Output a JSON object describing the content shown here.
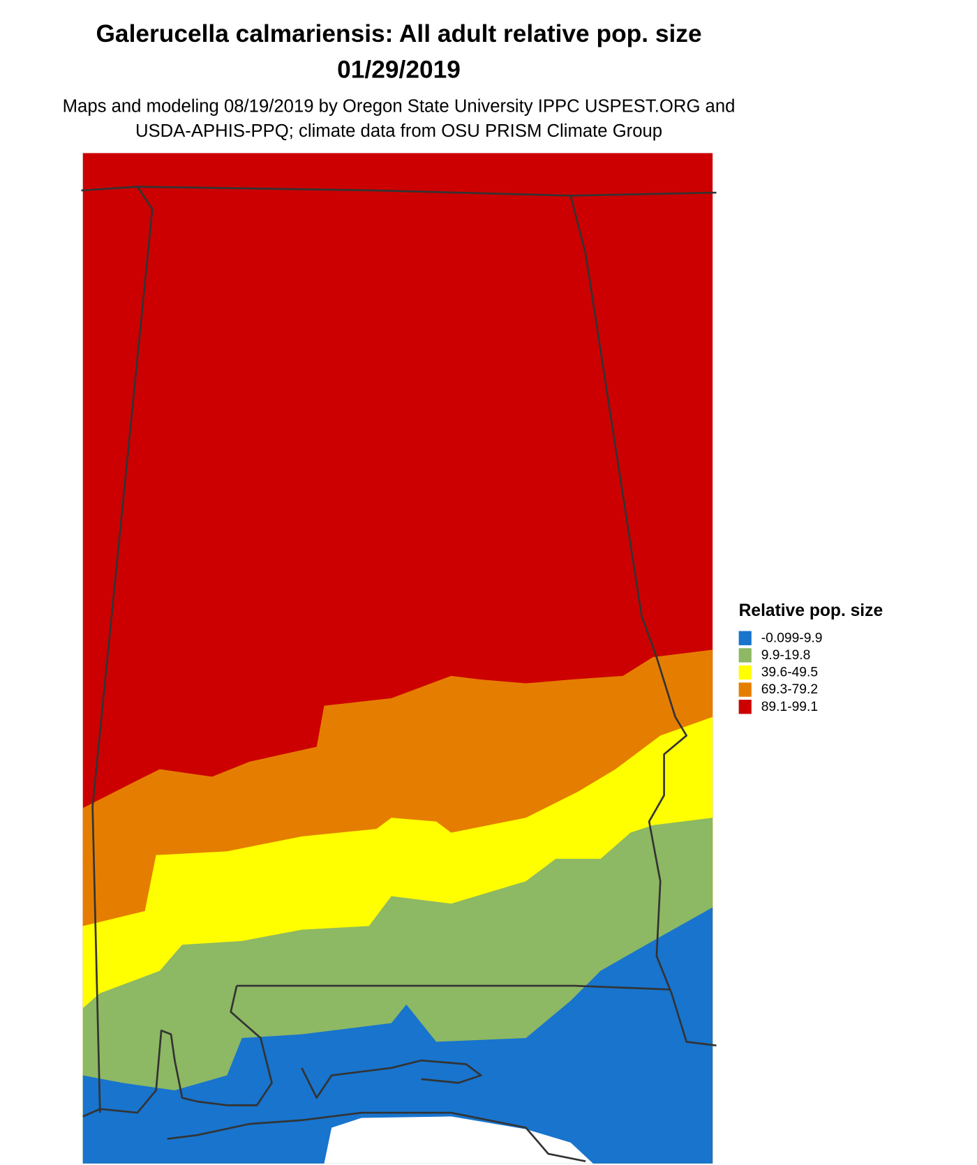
{
  "title": "Galerucella calmariensis: All adult relative pop. size",
  "date": "01/29/2019",
  "subtitle": [
    "Maps and modeling 08/19/2019 by Oregon State University IPPC USPEST.ORG and",
    "USDA-APHIS-PPQ; climate data from OSU PRISM Climate Group"
  ],
  "legend": {
    "title": "Relative pop. size",
    "items": [
      {
        "label": "-0.099-9.9",
        "color": "#1874cd"
      },
      {
        "label": "9.9-19.8",
        "color": "#8db864"
      },
      {
        "label": "39.6-49.5",
        "color": "#ffff00"
      },
      {
        "label": "69.3-79.2",
        "color": "#e57e00"
      },
      {
        "label": "89.1-99.1",
        "color": "#cc0000"
      }
    ]
  }
}
